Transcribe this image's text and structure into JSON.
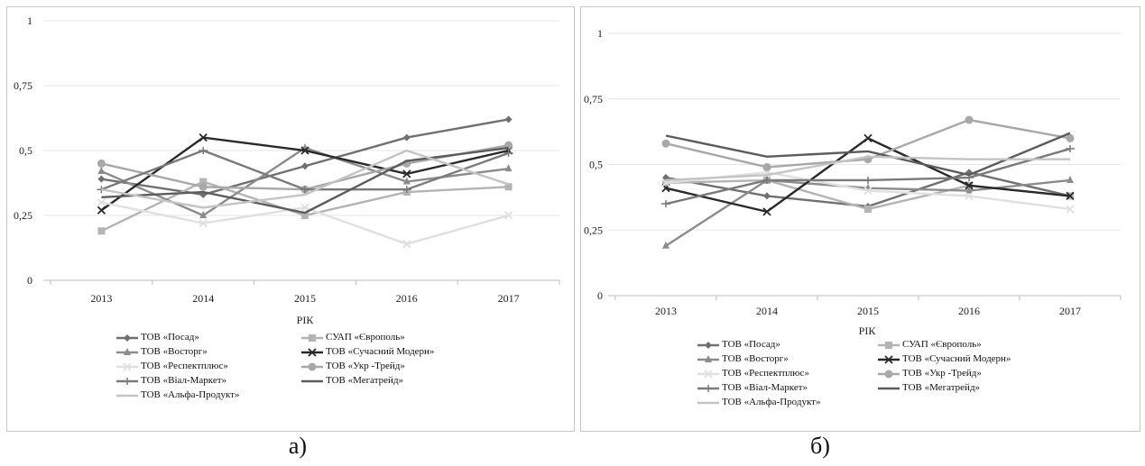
{
  "chart_data": [
    {
      "type": "line",
      "panel": "a",
      "categories": [
        "2013",
        "2014",
        "2015",
        "2016",
        "2017"
      ],
      "y_ticks": [
        "0",
        "0,25",
        "0,5",
        "0,75",
        "1"
      ],
      "ylim": [
        0,
        1
      ],
      "xlabel": "РІК",
      "ylabel": "",
      "grid": "horizontal",
      "legend_position": "bottom",
      "series": [
        {
          "name": "ТОВ «Посад»",
          "color": "#707070",
          "marker": "diamond",
          "values": [
            0.39,
            0.33,
            0.44,
            0.55,
            0.62
          ]
        },
        {
          "name": "СУАП «Європоль»",
          "color": "#b4b4b4",
          "marker": "square",
          "values": [
            0.19,
            0.38,
            0.25,
            0.34,
            0.36
          ]
        },
        {
          "name": "ТОВ «Восторг»",
          "color": "#8c8c8c",
          "marker": "triangle",
          "values": [
            0.42,
            0.25,
            0.51,
            0.38,
            0.43
          ]
        },
        {
          "name": "ТОВ «Сучасний Модерн»",
          "color": "#2a2a2a",
          "marker": "x",
          "values": [
            0.27,
            0.55,
            0.5,
            0.41,
            0.5
          ]
        },
        {
          "name": "ТОВ «Респектплюс»",
          "color": "#e0e0e0",
          "marker": "x",
          "values": [
            0.3,
            0.22,
            0.28,
            0.14,
            0.25
          ]
        },
        {
          "name": "ТОВ «Укр -Трейд»",
          "color": "#a8a8a8",
          "marker": "circle",
          "values": [
            0.45,
            0.36,
            0.35,
            0.45,
            0.52
          ]
        },
        {
          "name": "ТОВ «Віал-Маркет»",
          "color": "#7a7a7a",
          "marker": "plus",
          "values": [
            0.35,
            0.5,
            0.35,
            0.35,
            0.49
          ]
        },
        {
          "name": "ТОВ «Мегатрейд»",
          "color": "#5c5c5c",
          "marker": "none",
          "values": [
            0.32,
            0.34,
            0.26,
            0.46,
            0.51
          ]
        },
        {
          "name": "ТОВ «Альфа-Продукт»",
          "color": "#c4c4c4",
          "marker": "none",
          "values": [
            0.35,
            0.28,
            0.33,
            0.5,
            0.37
          ]
        }
      ]
    },
    {
      "type": "line",
      "panel": "б",
      "categories": [
        "2013",
        "2014",
        "2015",
        "2016",
        "2017"
      ],
      "y_ticks": [
        "0",
        "0,25",
        "0,5",
        "0,75",
        "1"
      ],
      "ylim": [
        0,
        1
      ],
      "xlabel": "РІК",
      "ylabel": "",
      "grid": "horizontal",
      "legend_position": "bottom",
      "series": [
        {
          "name": "ТОВ «Посад»",
          "color": "#707070",
          "marker": "diamond",
          "values": [
            0.45,
            0.38,
            0.34,
            0.47,
            0.38
          ]
        },
        {
          "name": "СУАП «Європоль»",
          "color": "#b4b4b4",
          "marker": "square",
          "values": [
            0.43,
            0.44,
            0.33,
            0.42,
            0.38
          ]
        },
        {
          "name": "ТОВ «Восторг»",
          "color": "#8c8c8c",
          "marker": "triangle",
          "values": [
            0.19,
            0.44,
            0.41,
            0.4,
            0.44
          ]
        },
        {
          "name": "ТОВ «Сучасний Модерн»",
          "color": "#2a2a2a",
          "marker": "x",
          "values": [
            0.41,
            0.32,
            0.6,
            0.42,
            0.38
          ]
        },
        {
          "name": "ТОВ «Респектплюс»",
          "color": "#e0e0e0",
          "marker": "x",
          "values": [
            0.43,
            0.47,
            0.4,
            0.38,
            0.33
          ]
        },
        {
          "name": "ТОВ «Укр -Трейд»",
          "color": "#a8a8a8",
          "marker": "circle",
          "values": [
            0.58,
            0.49,
            0.52,
            0.67,
            0.6
          ]
        },
        {
          "name": "ТОВ «Віал-Маркет»",
          "color": "#7a7a7a",
          "marker": "plus",
          "values": [
            0.35,
            0.44,
            0.44,
            0.45,
            0.56
          ]
        },
        {
          "name": "ТОВ «Мегатрейд»",
          "color": "#5c5c5c",
          "marker": "none",
          "values": [
            0.61,
            0.53,
            0.55,
            0.46,
            0.62
          ]
        },
        {
          "name": "ТОВ «Альфа-Продукт»",
          "color": "#c4c4c4",
          "marker": "none",
          "values": [
            0.44,
            0.46,
            0.53,
            0.52,
            0.52
          ]
        }
      ]
    }
  ],
  "captions": [
    "а)",
    "б)"
  ]
}
